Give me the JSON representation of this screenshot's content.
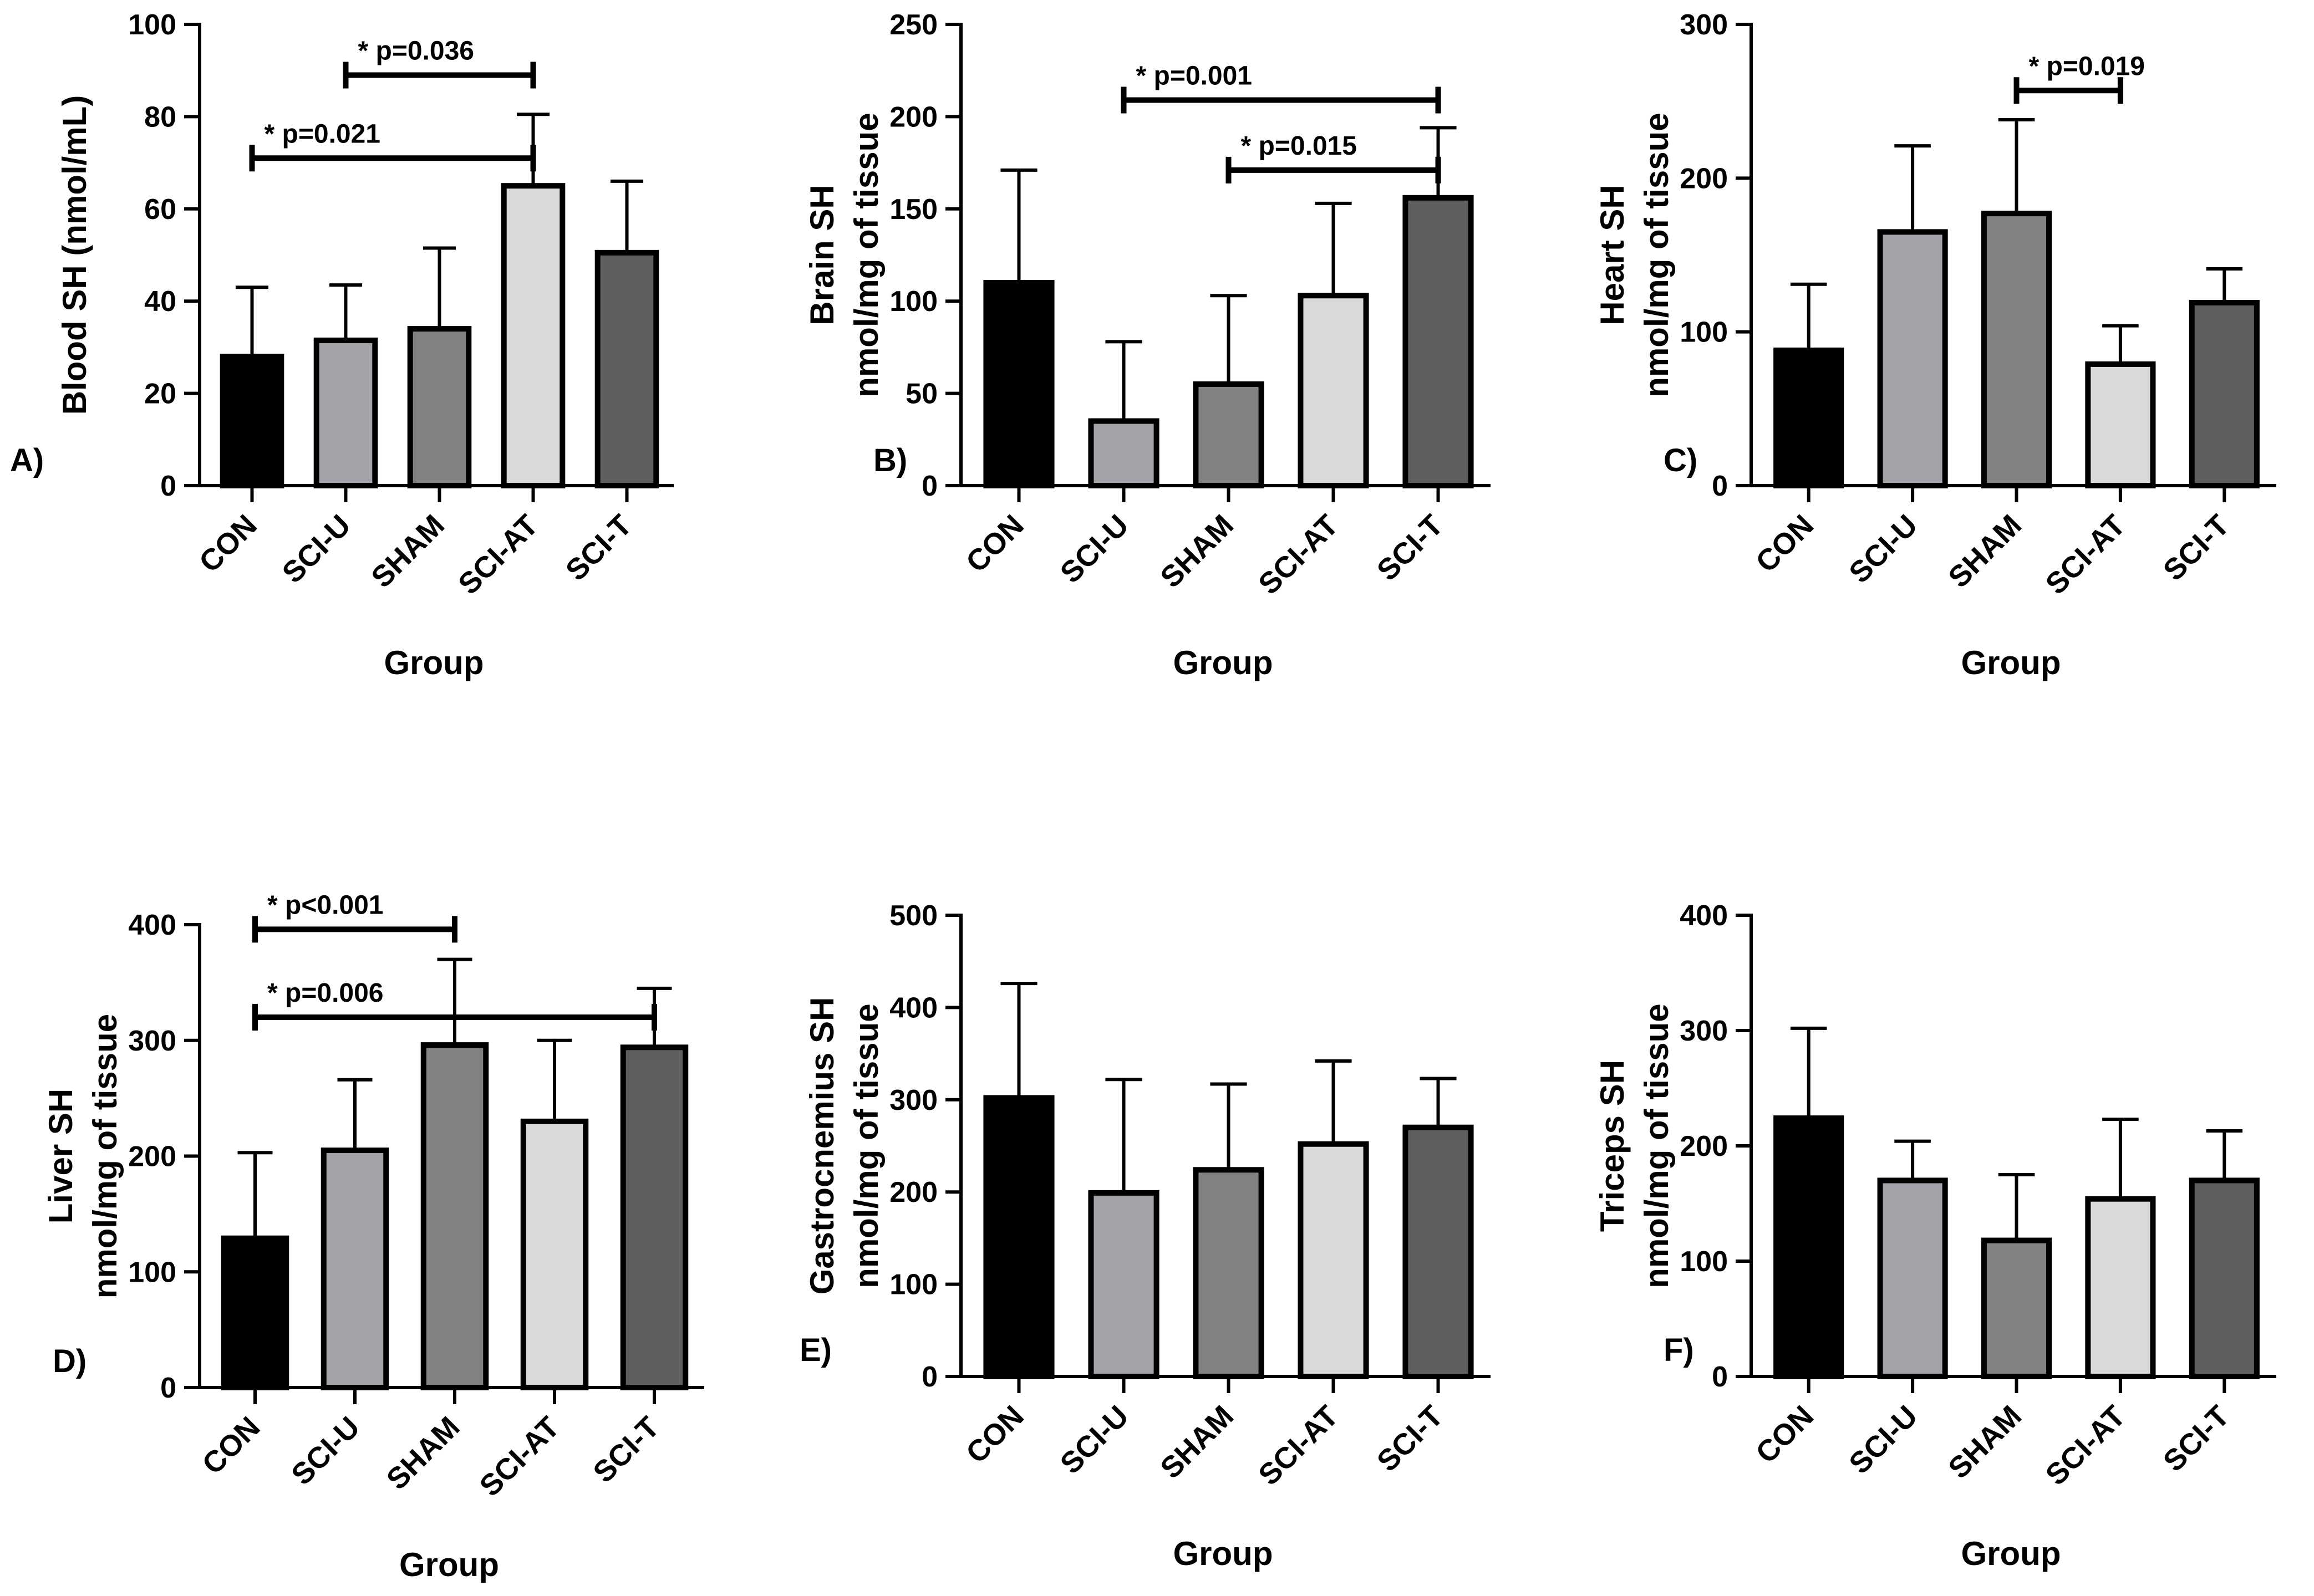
{
  "charts": [
    {
      "panel_label": "A)",
      "chart_data": {
        "type": "bar",
        "categories": [
          "CON",
          "SCI-U",
          "SHAM",
          "SCI-AT",
          "SCI-T"
        ],
        "values": [
          28,
          31.5,
          34,
          65,
          50.5
        ],
        "error_upper": [
          43,
          43.5,
          51.5,
          80.5,
          66
        ],
        "ylim": [
          0,
          100
        ],
        "yticks": [
          0,
          20,
          40,
          60,
          80,
          100
        ],
        "ylabel_lines": [
          "Blood SH (nmol/mL)"
        ],
        "xlabel": "Group",
        "title": "",
        "significance": [
          {
            "from": 0,
            "to": 3,
            "y": 71,
            "label": "* p=0.021"
          },
          {
            "from": 1,
            "to": 3,
            "y": 89,
            "label": "* p=0.036"
          }
        ]
      }
    },
    {
      "panel_label": "B)",
      "chart_data": {
        "type": "bar",
        "categories": [
          "CON",
          "SCI-U",
          "SHAM",
          "SCI-AT",
          "SCI-T"
        ],
        "values": [
          110,
          35,
          55,
          103,
          156
        ],
        "error_upper": [
          171,
          78,
          103,
          153,
          194
        ],
        "ylim": [
          0,
          250
        ],
        "yticks": [
          0,
          50,
          100,
          150,
          200,
          250
        ],
        "ylabel_lines": [
          "Brain SH",
          "nmol/mg of tissue"
        ],
        "xlabel": "Group",
        "title": "",
        "significance": [
          {
            "from": 1,
            "to": 4,
            "y": 209,
            "label": "* p=0.001"
          },
          {
            "from": 2,
            "to": 4,
            "y": 171,
            "label": "* p=0.015"
          }
        ]
      }
    },
    {
      "panel_label": "C)",
      "chart_data": {
        "type": "bar",
        "categories": [
          "CON",
          "SCI-U",
          "SHAM",
          "SCI-AT",
          "SCI-T"
        ],
        "values": [
          88,
          165,
          177,
          79,
          119
        ],
        "error_upper": [
          131,
          221,
          238,
          104,
          141
        ],
        "ylim": [
          0,
          300
        ],
        "yticks": [
          0,
          100,
          200,
          300
        ],
        "ylabel_lines": [
          "Heart SH",
          "nmol/mg of tissue"
        ],
        "xlabel": "Group",
        "title": "",
        "significance": [
          {
            "from": 2,
            "to": 3,
            "y": 257,
            "label": "* p=0.019"
          }
        ]
      }
    },
    {
      "panel_label": "D)",
      "chart_data": {
        "type": "bar",
        "categories": [
          "CON",
          "SCI-U",
          "SHAM",
          "SCI-AT",
          "SCI-T"
        ],
        "values": [
          129,
          205,
          296,
          230,
          294
        ],
        "error_upper": [
          203,
          266,
          370,
          300,
          345
        ],
        "ylim": [
          0,
          400
        ],
        "yticks": [
          0,
          100,
          200,
          300,
          400
        ],
        "ylabel_lines": [
          "Liver SH",
          "nmol/mg of tissue"
        ],
        "xlabel": "Group",
        "title": "",
        "significance": [
          {
            "from": 0,
            "to": 2,
            "y": 396,
            "label": "* p<0.001"
          },
          {
            "from": 0,
            "to": 4,
            "y": 320,
            "label": "* p=0.006"
          }
        ]
      }
    },
    {
      "panel_label": "E)",
      "chart_data": {
        "type": "bar",
        "categories": [
          "CON",
          "SCI-U",
          "SHAM",
          "SCI-AT",
          "SCI-T"
        ],
        "values": [
          302,
          199,
          224,
          252,
          270
        ],
        "error_upper": [
          426,
          322,
          317,
          342,
          323
        ],
        "ylim": [
          0,
          500
        ],
        "yticks": [
          0,
          100,
          200,
          300,
          400,
          500
        ],
        "ylabel_lines": [
          "Gastrocnemius SH",
          "nmol/mg of tissue"
        ],
        "xlabel": "Group",
        "title": "",
        "significance": []
      }
    },
    {
      "panel_label": "F)",
      "chart_data": {
        "type": "bar",
        "categories": [
          "CON",
          "SCI-U",
          "SHAM",
          "SCI-AT",
          "SCI-T"
        ],
        "values": [
          224,
          170,
          118,
          154,
          170
        ],
        "error_upper": [
          302,
          204,
          175,
          223,
          213
        ],
        "ylim": [
          0,
          400
        ],
        "yticks": [
          0,
          100,
          200,
          300,
          400
        ],
        "ylabel_lines": [
          "Triceps SH",
          "nmol/mg of tissue"
        ],
        "xlabel": "Group",
        "title": "",
        "significance": []
      }
    }
  ],
  "bar_colors": [
    "#000000",
    "#a2a3a8",
    "#828282",
    "#d9d9d9",
    "#5f5f5f"
  ]
}
